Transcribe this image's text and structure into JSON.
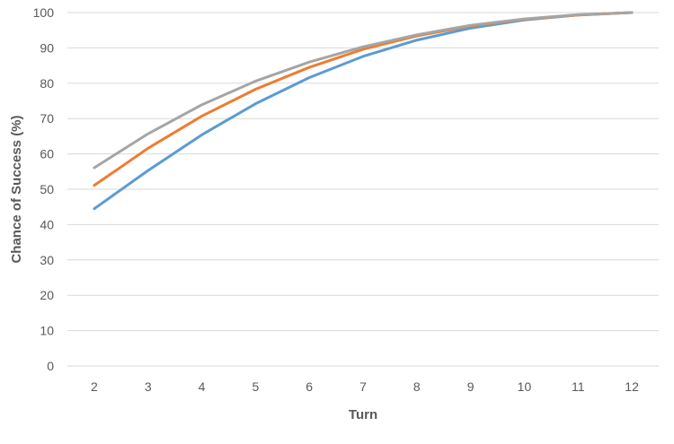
{
  "chart_data": {
    "type": "line",
    "title": "",
    "xlabel": "Turn",
    "ylabel": "Chance of Success (%)",
    "categories": [
      "2",
      "3",
      "4",
      "5",
      "6",
      "7",
      "8",
      "9",
      "10",
      "11",
      "12"
    ],
    "ylim": [
      0,
      100
    ],
    "yticks": [
      "0",
      "10",
      "20",
      "30",
      "40",
      "50",
      "60",
      "70",
      "80",
      "90",
      "100"
    ],
    "grid": true,
    "legend": "none",
    "series": [
      {
        "color": "#5b9bd5",
        "values": [
          44.5,
          55.3,
          65.4,
          74.2,
          81.6,
          87.6,
          92.2,
          95.6,
          97.9,
          99.3,
          100
        ]
      },
      {
        "color": "#ed7d31",
        "values": [
          51.1,
          61.6,
          70.7,
          78.3,
          84.5,
          89.6,
          93.4,
          96.2,
          98.1,
          99.3,
          100
        ]
      },
      {
        "color": "#a5a5a5",
        "values": [
          56.1,
          65.7,
          73.9,
          80.6,
          86.0,
          90.3,
          93.7,
          96.4,
          98.2,
          99.4,
          100
        ]
      }
    ]
  }
}
